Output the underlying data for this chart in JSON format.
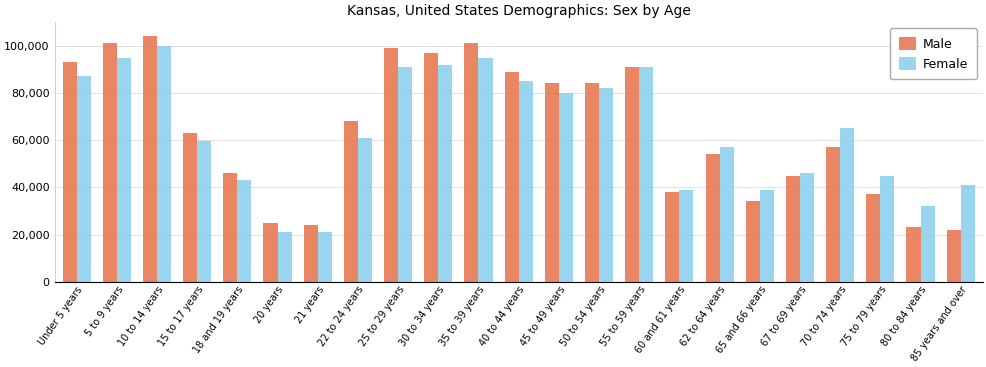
{
  "title": "Kansas, United States Demographics: Sex by Age",
  "categories": [
    "Under 5 years",
    "5 to 9 years",
    "10 to 14 years",
    "15 to 17 years",
    "18 and 19 years",
    "20 years",
    "21 years",
    "22 to 24 years",
    "25 to 29 years",
    "30 to 34 years",
    "35 to 39 years",
    "40 to 44 years",
    "45 to 49 years",
    "50 to 54 years",
    "55 to 59 years",
    "60 and 61 years",
    "62 to 64 years",
    "65 and 66 years",
    "67 to 69 years",
    "70 to 74 years",
    "75 to 79 years",
    "80 to 84 years",
    "85 years and over"
  ],
  "male": [
    93000,
    101000,
    104000,
    63000,
    46000,
    25000,
    24000,
    68000,
    99000,
    97000,
    101000,
    89000,
    84000,
    84000,
    91000,
    38000,
    54000,
    34000,
    45000,
    57000,
    37000,
    23000,
    22000
  ],
  "female": [
    87000,
    95000,
    100000,
    59500,
    43000,
    21000,
    21000,
    61000,
    91000,
    92000,
    95000,
    85000,
    80000,
    82000,
    91000,
    39000,
    57000,
    39000,
    46000,
    65000,
    45000,
    32000,
    41000
  ],
  "male_color": "#E8714A",
  "female_color": "#87CEEB",
  "ylim": [
    0,
    110000
  ],
  "yticks": [
    0,
    20000,
    40000,
    60000,
    80000,
    100000
  ],
  "legend_labels": [
    "Male",
    "Female"
  ],
  "bar_width": 0.35,
  "figsize": [
    9.87,
    3.67
  ],
  "dpi": 100,
  "title_fontsize": 10,
  "tick_fontsize": 7,
  "ytick_fontsize": 8
}
